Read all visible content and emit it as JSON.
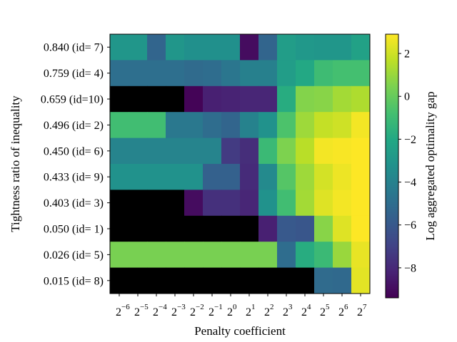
{
  "chart_data": {
    "type": "heatmap",
    "xlabel": "Penalty coefficient",
    "ylabel": "Tightness ratio of inequality",
    "colorbar_label": "Log aggregated optimality gap",
    "x_tick_labels": [
      {
        "base": "2",
        "exp": "−6"
      },
      {
        "base": "2",
        "exp": "−5"
      },
      {
        "base": "2",
        "exp": "−4"
      },
      {
        "base": "2",
        "exp": "−3"
      },
      {
        "base": "2",
        "exp": "−2"
      },
      {
        "base": "2",
        "exp": "−1"
      },
      {
        "base": "2",
        "exp": "0"
      },
      {
        "base": "2",
        "exp": "1"
      },
      {
        "base": "2",
        "exp": "2"
      },
      {
        "base": "2",
        "exp": "3"
      },
      {
        "base": "2",
        "exp": "4"
      },
      {
        "base": "2",
        "exp": "5"
      },
      {
        "base": "2",
        "exp": "6"
      },
      {
        "base": "2",
        "exp": "7"
      }
    ],
    "y_tick_labels": [
      "0.840 (id= 7)",
      "0.759 (id= 4)",
      "0.659 (id=10)",
      "0.496 (id= 2)",
      "0.450 (id= 6)",
      "0.433 (id= 9)",
      "0.403 (id= 3)",
      "0.050 (id= 1)",
      "0.026 (id= 5)",
      "0.015 (id= 8)"
    ],
    "colorbar": {
      "min": -9.4,
      "max": 2.9,
      "ticks": [
        2,
        0,
        -2,
        -4,
        -6,
        -8
      ],
      "tick_labels": [
        "2",
        "0",
        "−2",
        "−4",
        "−6",
        "−8"
      ],
      "colormap": "viridis"
    },
    "missing_color": "#000000",
    "values": [
      [
        -3.0,
        -3.0,
        -5.4,
        -3.0,
        -3.3,
        -3.3,
        -3.3,
        -9.0,
        -5.4,
        -2.6,
        -2.9,
        -3.0,
        -3.0,
        -2.4
      ],
      [
        -4.9,
        -4.9,
        -4.9,
        -4.9,
        -5.1,
        -5.0,
        -4.6,
        -4.1,
        -4.1,
        -2.6,
        -2.0,
        -1.0,
        -0.8,
        -0.8
      ],
      [
        null,
        null,
        null,
        null,
        -9.3,
        -8.3,
        -8.2,
        -8.1,
        -8.1,
        -1.8,
        0.6,
        0.7,
        1.2,
        1.4
      ],
      [
        -0.9,
        -0.9,
        -0.9,
        -4.5,
        -4.5,
        -5.0,
        -5.4,
        -4.0,
        -3.2,
        -0.6,
        1.1,
        1.8,
        2.0,
        2.7
      ],
      [
        -3.9,
        -3.9,
        -3.9,
        -3.9,
        -3.9,
        -3.9,
        -7.3,
        -7.8,
        -1.1,
        0.5,
        1.6,
        2.7,
        2.8,
        3.0
      ],
      [
        -3.2,
        -3.2,
        -3.2,
        -3.2,
        -3.2,
        -5.6,
        -5.6,
        -7.9,
        -3.6,
        -0.4,
        1.1,
        2.1,
        2.6,
        2.9
      ],
      [
        null,
        null,
        null,
        null,
        -9.0,
        -7.7,
        -7.7,
        -8.1,
        -3.2,
        -0.9,
        1.2,
        2.3,
        2.7,
        2.9
      ],
      [
        null,
        null,
        null,
        null,
        null,
        null,
        null,
        null,
        -8.3,
        -6.0,
        -6.1,
        0.7,
        2.3,
        2.9
      ],
      [
        0.4,
        0.4,
        0.4,
        0.4,
        0.4,
        0.4,
        0.4,
        0.4,
        0.4,
        -5.0,
        -1.8,
        -1.1,
        1.0,
        2.5
      ],
      [
        null,
        null,
        null,
        null,
        null,
        null,
        null,
        null,
        null,
        null,
        null,
        -5.1,
        -5.2,
        2.4
      ]
    ]
  }
}
